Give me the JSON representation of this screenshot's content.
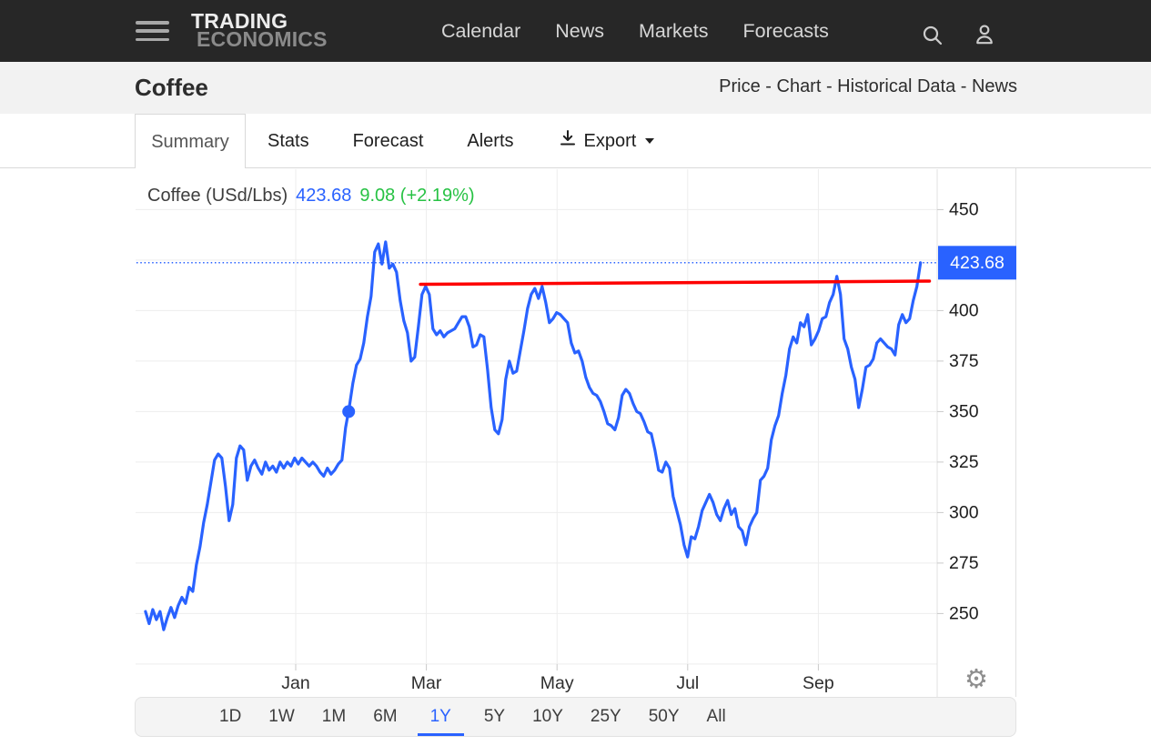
{
  "navbar": {
    "brand_line1": "TRADING",
    "brand_line2": "ECONOMICS",
    "items": [
      "Calendar",
      "News",
      "Markets",
      "Forecasts"
    ]
  },
  "subheader": {
    "title": "Coffee",
    "links_text": "Price - Chart - Historical Data - News"
  },
  "tabs": {
    "items": [
      "Summary",
      "Stats",
      "Forecast",
      "Alerts"
    ],
    "active": "Summary",
    "export_label": "Export"
  },
  "chart_header": {
    "instrument": "Coffee (USd/Lbs)",
    "price": "423.68",
    "change": "9.08 (+2.19%)"
  },
  "chart_data": {
    "type": "line",
    "title": "Coffee (USd/Lbs)",
    "unit": "USd/Lbs",
    "last_price": 423.68,
    "change": 9.08,
    "change_pct": "+2.19%",
    "grid": true,
    "legend": false,
    "x_axis": {
      "tick_labels": [
        "Jan",
        "Mar",
        "May",
        "Jul",
        "Sep"
      ],
      "tick_positions_months": [
        0,
        2,
        4,
        6,
        8
      ],
      "domain_months_from_jan": [
        -2.3,
        9.6
      ]
    },
    "y_axis": {
      "tick_labels": [
        450,
        400,
        375,
        350,
        325,
        300,
        275,
        250
      ],
      "gridline_prices": [
        225,
        250,
        275,
        300,
        325,
        350,
        375,
        400,
        425,
        450
      ],
      "range": [
        225,
        460
      ],
      "side": "right"
    },
    "series": [
      {
        "name": "Coffee price",
        "color": "#2962ff",
        "t_start_months": -2.3,
        "t_step_months": 0.0557,
        "prices": [
          251,
          245,
          252,
          247,
          251,
          242,
          248,
          253,
          248,
          254,
          258,
          255,
          263,
          261,
          274,
          283,
          295,
          304,
          315,
          326,
          329,
          327,
          313,
          296,
          304,
          327,
          333,
          331,
          316,
          323,
          326,
          322,
          319,
          325,
          321,
          323,
          320,
          325,
          322,
          325,
          323,
          327,
          324,
          327,
          325,
          323,
          325,
          323,
          320,
          318,
          322,
          319,
          321,
          324,
          326,
          342,
          352,
          364,
          373,
          376,
          384,
          397,
          407,
          429,
          433,
          423,
          434,
          421,
          423,
          419,
          405,
          395,
          389,
          375,
          377,
          392,
          408,
          412,
          408,
          391,
          388,
          390,
          387,
          389,
          390,
          391,
          394,
          397,
          397,
          392,
          382,
          383,
          388,
          387,
          371,
          352,
          341,
          339,
          346,
          366,
          375,
          369,
          370,
          380,
          390,
          401,
          408,
          411,
          406,
          412,
          404,
          394,
          396,
          399,
          398,
          396,
          394,
          384,
          379,
          380,
          375,
          367,
          362,
          359,
          358,
          355,
          350,
          344,
          343,
          341,
          347,
          358,
          361,
          359,
          354,
          350,
          349,
          345,
          340,
          339,
          331,
          321,
          320,
          325,
          322,
          308,
          301,
          294,
          284,
          278,
          288,
          287,
          293,
          301,
          305,
          309,
          305,
          299,
          296,
          302,
          306,
          299,
          302,
          293,
          291,
          284,
          293,
          297,
          300,
          316,
          318,
          322,
          336,
          343,
          348,
          359,
          368,
          381,
          387,
          384,
          394,
          392,
          398,
          383,
          386,
          390,
          396,
          397,
          404,
          408,
          417,
          408,
          386,
          381,
          372,
          366,
          352,
          361,
          372,
          373,
          376,
          384,
          386,
          384,
          382,
          381,
          378,
          393,
          398,
          394,
          396,
          405,
          412,
          423.68
        ]
      }
    ],
    "annotations": {
      "current_price_line": {
        "price": 423.68,
        "style": "dotted",
        "color": "#2962ff"
      },
      "current_price_badge": {
        "text": "423.68",
        "bg": "#2962ff",
        "fg": "#ffffff"
      },
      "trendline": {
        "color": "#fe0000",
        "from": {
          "t_months": 1.91,
          "price": 413
        },
        "to": {
          "t_months": 9.7,
          "price": 414.6
        }
      },
      "marker_dot": {
        "t_months": 0.81,
        "price": 350,
        "color": "#2962ff"
      }
    }
  },
  "range_selector": {
    "options": [
      "1D",
      "1W",
      "1M",
      "6M",
      "1Y",
      "5Y",
      "10Y",
      "25Y",
      "50Y",
      "All"
    ],
    "active": "1Y"
  },
  "colors": {
    "accent_blue": "#2962ff",
    "positive_green": "#27c244",
    "trend_red": "#fe0000"
  }
}
